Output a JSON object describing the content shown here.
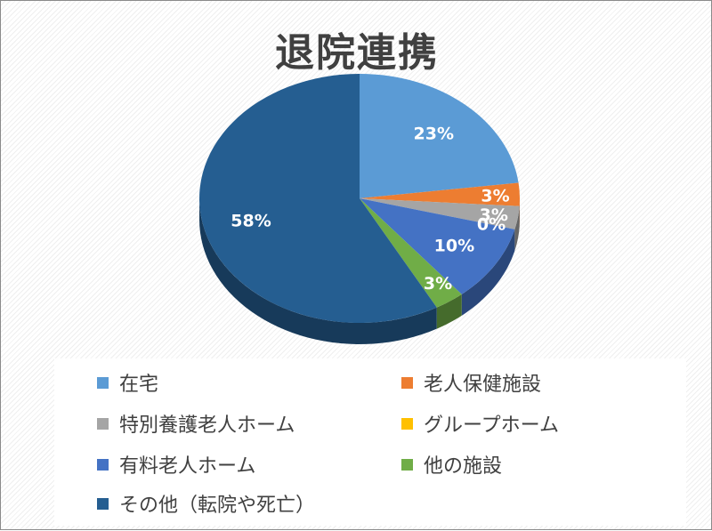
{
  "title": "退院連携",
  "chart_data": {
    "type": "pie",
    "title": "退院連携",
    "slices": [
      {
        "label": "在宅",
        "value": 23,
        "data_label": "23%",
        "color": "#5b9bd5"
      },
      {
        "label": "老人保健施設",
        "value": 3,
        "data_label": "3%",
        "color": "#ed7d31"
      },
      {
        "label": "特別養護老人ホーム",
        "value": 3,
        "data_label": "3%",
        "color": "#a5a5a5"
      },
      {
        "label": "グループホーム",
        "value": 0,
        "data_label": "0%",
        "color": "#ffc000"
      },
      {
        "label": "有料老人ホーム",
        "value": 10,
        "data_label": "10%",
        "color": "#4472c4"
      },
      {
        "label": "他の施設",
        "value": 3,
        "data_label": "3%",
        "color": "#70ad47"
      },
      {
        "label": "その他（転院や死亡）",
        "value": 58,
        "data_label": "58%",
        "color": "#255e91"
      }
    ],
    "legend_position": "bottom"
  }
}
